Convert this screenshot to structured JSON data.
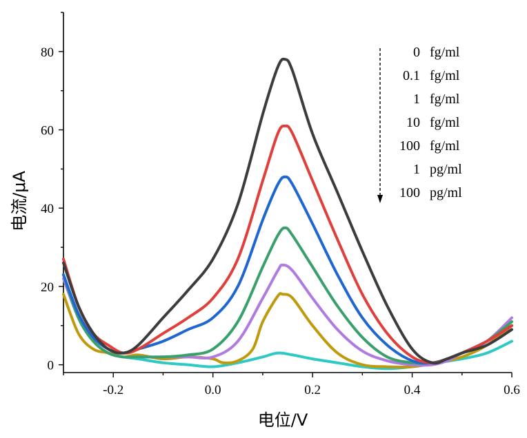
{
  "chart_data": {
    "type": "line",
    "title": "",
    "xlabel": "电位/V",
    "ylabel": "电流/μA",
    "xlim": [
      -0.3,
      0.6
    ],
    "ylim": [
      -2,
      90
    ],
    "x_ticks": [
      -0.2,
      0.0,
      0.2,
      0.4,
      0.6
    ],
    "x_tick_labels": [
      "-0.2",
      "0.0",
      "0.2",
      "0.4",
      "0.6"
    ],
    "y_ticks": [
      0,
      20,
      40,
      60,
      80
    ],
    "y_tick_labels": [
      "0",
      "20",
      "40",
      "60",
      "80"
    ],
    "grid": false,
    "legend_position": "top-right",
    "legend_arrow": "down",
    "legend": [
      {
        "value": "0",
        "unit": "fg/ml"
      },
      {
        "value": "0.1",
        "unit": "fg/ml"
      },
      {
        "value": "1",
        "unit": "fg/ml"
      },
      {
        "value": "10",
        "unit": "fg/ml"
      },
      {
        "value": "100",
        "unit": "fg/ml"
      },
      {
        "value": "1",
        "unit": "pg/ml"
      },
      {
        "value": "100",
        "unit": "pg/ml"
      }
    ],
    "series": [
      {
        "color": "#3c3c3c",
        "x": [
          -0.3,
          -0.27,
          -0.24,
          -0.21,
          -0.18,
          -0.15,
          -0.1,
          -0.05,
          0.0,
          0.05,
          0.1,
          0.13,
          0.145,
          0.16,
          0.2,
          0.25,
          0.3,
          0.35,
          0.4,
          0.44,
          0.47,
          0.5,
          0.55,
          0.6
        ],
        "y": [
          26,
          15,
          8,
          4,
          3,
          5,
          12,
          19,
          27,
          41,
          64,
          76,
          78,
          75,
          59,
          44,
          29,
          15,
          4,
          0.5,
          1.5,
          3,
          5,
          9
        ]
      },
      {
        "color": "#e0403c",
        "x": [
          -0.3,
          -0.27,
          -0.24,
          -0.21,
          -0.18,
          -0.15,
          -0.1,
          -0.05,
          0.0,
          0.05,
          0.1,
          0.13,
          0.145,
          0.16,
          0.2,
          0.25,
          0.3,
          0.35,
          0.4,
          0.44,
          0.47,
          0.5,
          0.55,
          0.6
        ],
        "y": [
          27,
          15,
          8,
          5,
          3,
          4,
          8,
          12,
          17,
          27,
          47,
          59,
          61,
          59,
          47,
          32,
          18,
          8,
          2,
          0.5,
          1.5,
          3,
          6,
          10
        ]
      },
      {
        "color": "#1f66d1",
        "x": [
          -0.3,
          -0.27,
          -0.24,
          -0.21,
          -0.18,
          -0.15,
          -0.1,
          -0.05,
          0.0,
          0.05,
          0.1,
          0.13,
          0.145,
          0.16,
          0.2,
          0.25,
          0.3,
          0.35,
          0.4,
          0.44,
          0.47,
          0.5,
          0.55,
          0.6
        ],
        "y": [
          23,
          13,
          7,
          4,
          3,
          4,
          6,
          9,
          12,
          20,
          37,
          46,
          48,
          46,
          36,
          23,
          12,
          5,
          1,
          0.5,
          1.5,
          3,
          6,
          10
        ]
      },
      {
        "color": "#3aa06b",
        "x": [
          -0.3,
          -0.27,
          -0.24,
          -0.21,
          -0.18,
          -0.15,
          -0.1,
          -0.05,
          0.0,
          0.05,
          0.1,
          0.13,
          0.145,
          0.16,
          0.2,
          0.25,
          0.3,
          0.35,
          0.4,
          0.44,
          0.47,
          0.5,
          0.55,
          0.6
        ],
        "y": [
          23,
          12,
          6,
          3,
          2,
          2,
          2,
          2.5,
          4,
          11,
          25,
          33,
          35,
          33,
          25,
          15,
          7,
          2,
          0.5,
          0.5,
          1.5,
          3,
          6,
          11
        ]
      },
      {
        "color": "#b07be0",
        "x": [
          -0.3,
          -0.27,
          -0.24,
          -0.21,
          -0.18,
          -0.15,
          -0.1,
          -0.05,
          0.0,
          0.05,
          0.1,
          0.13,
          0.14,
          0.16,
          0.2,
          0.25,
          0.3,
          0.35,
          0.4,
          0.44,
          0.47,
          0.5,
          0.55,
          0.6
        ],
        "y": [
          22,
          12,
          6,
          3,
          2,
          2,
          2,
          2,
          2,
          6,
          17,
          24,
          25.5,
          24,
          17,
          9,
          3.5,
          1,
          0,
          0,
          1,
          3,
          6,
          12
        ]
      },
      {
        "color": "#c09a0e",
        "x": [
          -0.3,
          -0.27,
          -0.24,
          -0.21,
          -0.18,
          -0.15,
          -0.1,
          -0.05,
          0.0,
          0.02,
          0.05,
          0.08,
          0.1,
          0.13,
          0.14,
          0.16,
          0.2,
          0.25,
          0.3,
          0.35,
          0.4,
          0.45,
          0.5,
          0.55,
          0.6
        ],
        "y": [
          18,
          8,
          4,
          3,
          2,
          2.5,
          1.5,
          2,
          1.5,
          0.5,
          1,
          4,
          11,
          17.5,
          18,
          17,
          10,
          3,
          0,
          -0.5,
          -0.5,
          0.5,
          2,
          5,
          10
        ]
      },
      {
        "color": "#2ec9c4",
        "x": [
          -0.3,
          -0.27,
          -0.24,
          -0.21,
          -0.18,
          -0.15,
          -0.1,
          -0.05,
          0.0,
          0.05,
          0.1,
          0.13,
          0.16,
          0.2,
          0.25,
          0.3,
          0.35,
          0.4,
          0.45,
          0.5,
          0.55,
          0.6
        ],
        "y": [
          23,
          12,
          6,
          3,
          2,
          1.5,
          0.5,
          0,
          -0.5,
          0.5,
          2,
          3,
          2.5,
          1.5,
          0.5,
          -0.5,
          -1,
          -0.5,
          0.5,
          1.5,
          3,
          6
        ]
      }
    ]
  }
}
